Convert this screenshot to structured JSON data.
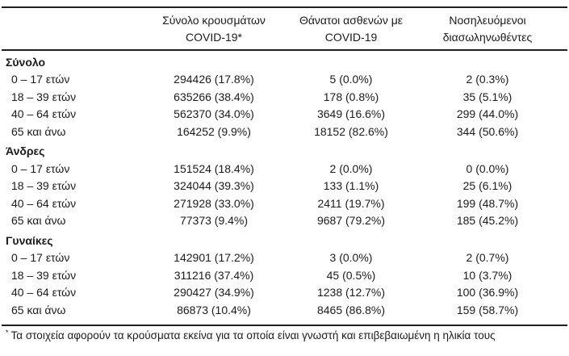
{
  "header": {
    "col_cases": {
      "line1": "Σύνολο κρουσμάτων",
      "line2": "COVID-19*"
    },
    "col_deaths": {
      "line1": "Θάνατοι ασθενών με",
      "line2": "COVID-19"
    },
    "col_intubated": {
      "line1": "Νοσηλευόμενοι",
      "line2": "διασωληνωθέντες"
    }
  },
  "sections": [
    {
      "label": "Σύνολο",
      "rows": [
        {
          "label": "0 – 17 ετών",
          "cases": "294426 (17.8%)",
          "deaths": "5 (0.0%)",
          "intubated": "2 (0.3%)"
        },
        {
          "label": "18 – 39 ετών",
          "cases": "635266 (38.4%)",
          "deaths": "178 (0.8%)",
          "intubated": "35 (5.1%)"
        },
        {
          "label": "40 – 64 ετών",
          "cases": "562370 (34.0%)",
          "deaths": "3649 (16.6%)",
          "intubated": "299 (44.0%)"
        },
        {
          "label": "65 και άνω",
          "cases": "164252 (9.9%)",
          "deaths": "18152 (82.6%)",
          "intubated": "344 (50.6%)"
        }
      ]
    },
    {
      "label": "Άνδρες",
      "rows": [
        {
          "label": "0 – 17 ετών",
          "cases": "151524 (18.4%)",
          "deaths": "2 (0.0%)",
          "intubated": "0 (0.0%)"
        },
        {
          "label": "18 – 39 ετών",
          "cases": "324044 (39.3%)",
          "deaths": "133 (1.1%)",
          "intubated": "25 (6.1%)"
        },
        {
          "label": "40 – 64 ετών",
          "cases": "271928 (33.0%)",
          "deaths": "2411 (19.7%)",
          "intubated": "199 (48.7%)"
        },
        {
          "label": "65 και άνω",
          "cases": "77373 (9.4%)",
          "deaths": "9687 (79.2%)",
          "intubated": "185 (45.2%)"
        }
      ]
    },
    {
      "label": "Γυναίκες",
      "rows": [
        {
          "label": "0 – 17 ετών",
          "cases": "142901 (17.2%)",
          "deaths": "3 (0.0%)",
          "intubated": "2 (0.7%)"
        },
        {
          "label": "18 – 39 ετών",
          "cases": "311216 (37.4%)",
          "deaths": "45 (0.5%)",
          "intubated": "10 (3.7%)"
        },
        {
          "label": "40 – 64 ετών",
          "cases": "290427 (34.9%)",
          "deaths": "1238 (12.7%)",
          "intubated": "100 (36.9%)"
        },
        {
          "label": "65 και άνω",
          "cases": "86873 (10.4%)",
          "deaths": "8465 (86.8%)",
          "intubated": "159 (58.7%)"
        }
      ]
    }
  ],
  "footnote": {
    "marker": "*",
    "text": "Τα στοιχεία αφορούν τα κρούσματα εκείνα για τα οποία είναι γνωστή και επιβεβαιωμένη η ηλικία τους"
  },
  "colors": {
    "text": "#1b1b1b",
    "rule": "#1f1f1f",
    "background": "#ffffff"
  }
}
